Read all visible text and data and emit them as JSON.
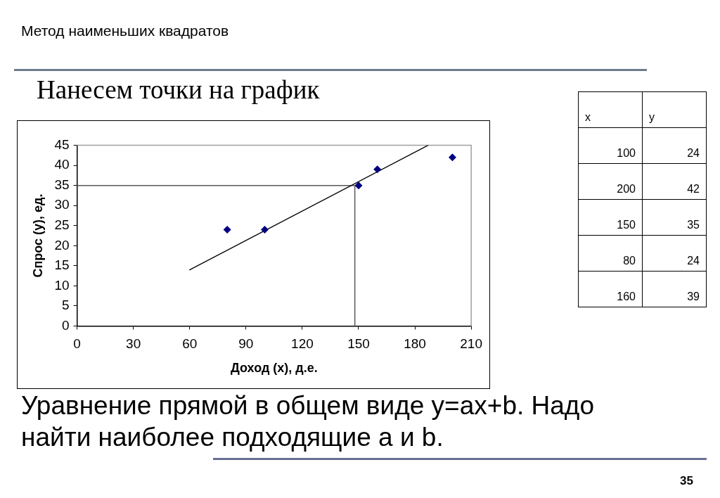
{
  "chart_data": [
    {
      "type": "scatter",
      "title": "Нанесем точки на график",
      "xlabel": "Доход (x), д.е.",
      "ylabel": "Спрос (y), ед.",
      "annotations": [
        "Метод наименьших квадратов",
        "Уравнение прямой в общем виде y=ax+b. Надо найти наиболее подходящие a и b.",
        "35"
      ],
      "series": [
        {
          "color": "#000080",
          "x": [
            100,
            200,
            150,
            80,
            160
          ],
          "values": [
            24,
            42,
            35,
            24,
            39
          ]
        },
        {
          "type": "line",
          "color": "#000000",
          "marker": "none",
          "x": [
            60,
            187
          ],
          "values": [
            14,
            45
          ]
        }
      ],
      "xlim": [
        0,
        210
      ],
      "xticks": [
        0,
        30,
        60,
        90,
        120,
        150,
        180,
        210
      ],
      "ylim": [
        0,
        45
      ],
      "yticks": [
        0,
        5,
        10,
        15,
        20,
        25,
        30,
        35,
        40,
        45
      ],
      "ref_lines": [
        {
          "axis": "x",
          "value": 148,
          "color": "#595959"
        },
        {
          "axis": "y",
          "value": 35,
          "color": "#595959"
        }
      ],
      "marker": "diamond"
    },
    {
      "type": "other",
      "xlabel": "x",
      "ylabel": "y",
      "categories": [
        "100",
        "200",
        "150",
        "80",
        "160"
      ],
      "values": [
        24,
        42,
        35,
        24,
        39
      ],
      "data_labels": true
    }
  ]
}
